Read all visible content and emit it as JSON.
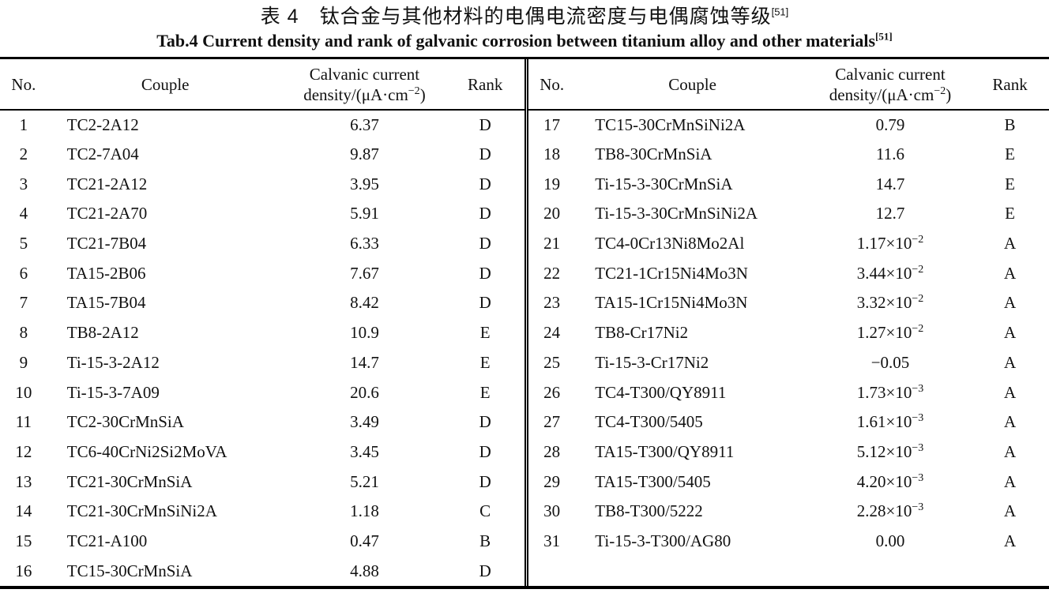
{
  "titles": {
    "zh": "表 4　钛合金与其他材料的电偶电流密度与电偶腐蚀等级",
    "zh_citation": "[51]",
    "en": "Tab.4 Current density and rank of galvanic corrosion between titanium alloy and other materials",
    "en_citation": "[51]"
  },
  "table": {
    "columns": {
      "no": "No.",
      "couple": "Couple",
      "density_line1": "Calvanic current",
      "density_line2_pre": "density/(μA·cm",
      "density_line2_sup": "−2",
      "density_line2_post": ")",
      "rank": "Rank"
    },
    "left_rows": [
      {
        "no": "1",
        "couple": "TC2-2A12",
        "density": "6.37",
        "density_exp": "",
        "rank": "D"
      },
      {
        "no": "2",
        "couple": "TC2-7A04",
        "density": "9.87",
        "density_exp": "",
        "rank": "D"
      },
      {
        "no": "3",
        "couple": "TC21-2A12",
        "density": "3.95",
        "density_exp": "",
        "rank": "D"
      },
      {
        "no": "4",
        "couple": "TC21-2A70",
        "density": "5.91",
        "density_exp": "",
        "rank": "D"
      },
      {
        "no": "5",
        "couple": "TC21-7B04",
        "density": "6.33",
        "density_exp": "",
        "rank": "D"
      },
      {
        "no": "6",
        "couple": "TA15-2B06",
        "density": "7.67",
        "density_exp": "",
        "rank": "D"
      },
      {
        "no": "7",
        "couple": "TA15-7B04",
        "density": "8.42",
        "density_exp": "",
        "rank": "D"
      },
      {
        "no": "8",
        "couple": "TB8-2A12",
        "density": "10.9",
        "density_exp": "",
        "rank": "E"
      },
      {
        "no": "9",
        "couple": "Ti-15-3-2A12",
        "density": "14.7",
        "density_exp": "",
        "rank": "E"
      },
      {
        "no": "10",
        "couple": "Ti-15-3-7A09",
        "density": "20.6",
        "density_exp": "",
        "rank": "E"
      },
      {
        "no": "11",
        "couple": "TC2-30CrMnSiA",
        "density": "3.49",
        "density_exp": "",
        "rank": "D"
      },
      {
        "no": "12",
        "couple": "TC6-40CrNi2Si2MoVA",
        "density": "3.45",
        "density_exp": "",
        "rank": "D"
      },
      {
        "no": "13",
        "couple": "TC21-30CrMnSiA",
        "density": "5.21",
        "density_exp": "",
        "rank": "D"
      },
      {
        "no": "14",
        "couple": "TC21-30CrMnSiNi2A",
        "density": "1.18",
        "density_exp": "",
        "rank": "C"
      },
      {
        "no": "15",
        "couple": "TC21-A100",
        "density": "0.47",
        "density_exp": "",
        "rank": "B"
      },
      {
        "no": "16",
        "couple": "TC15-30CrMnSiA",
        "density": "4.88",
        "density_exp": "",
        "rank": "D"
      }
    ],
    "right_rows": [
      {
        "no": "17",
        "couple": "TC15-30CrMnSiNi2A",
        "density": "0.79",
        "density_exp": "",
        "rank": "B"
      },
      {
        "no": "18",
        "couple": "TB8-30CrMnSiA",
        "density": "11.6",
        "density_exp": "",
        "rank": "E"
      },
      {
        "no": "19",
        "couple": "Ti-15-3-30CrMnSiA",
        "density": "14.7",
        "density_exp": "",
        "rank": "E"
      },
      {
        "no": "20",
        "couple": "Ti-15-3-30CrMnSiNi2A",
        "density": "12.7",
        "density_exp": "",
        "rank": "E"
      },
      {
        "no": "21",
        "couple": "TC4-0Cr13Ni8Mo2Al",
        "density": "1.17×10",
        "density_exp": "−2",
        "rank": "A"
      },
      {
        "no": "22",
        "couple": "TC21-1Cr15Ni4Mo3N",
        "density": "3.44×10",
        "density_exp": "−2",
        "rank": "A"
      },
      {
        "no": "23",
        "couple": "TA15-1Cr15Ni4Mo3N",
        "density": "3.32×10",
        "density_exp": "−2",
        "rank": "A"
      },
      {
        "no": "24",
        "couple": "TB8-Cr17Ni2",
        "density": "1.27×10",
        "density_exp": "−2",
        "rank": "A"
      },
      {
        "no": "25",
        "couple": "Ti-15-3-Cr17Ni2",
        "density": "−0.05",
        "density_exp": "",
        "rank": "A"
      },
      {
        "no": "26",
        "couple": "TC4-T300/QY8911",
        "density": "1.73×10",
        "density_exp": "−3",
        "rank": "A"
      },
      {
        "no": "27",
        "couple": "TC4-T300/5405",
        "density": "1.61×10",
        "density_exp": "−3",
        "rank": "A"
      },
      {
        "no": "28",
        "couple": "TA15-T300/QY8911",
        "density": "5.12×10",
        "density_exp": "−3",
        "rank": "A"
      },
      {
        "no": "29",
        "couple": "TA15-T300/5405",
        "density": "4.20×10",
        "density_exp": "−3",
        "rank": "A"
      },
      {
        "no": "30",
        "couple": "TB8-T300/5222",
        "density": "2.28×10",
        "density_exp": "−3",
        "rank": "A"
      },
      {
        "no": "31",
        "couple": "Ti-15-3-T300/AG80",
        "density": "0.00",
        "density_exp": "",
        "rank": "A"
      }
    ]
  },
  "colors": {
    "background": "#ffffff",
    "text": "#111111",
    "rule": "#000000"
  }
}
